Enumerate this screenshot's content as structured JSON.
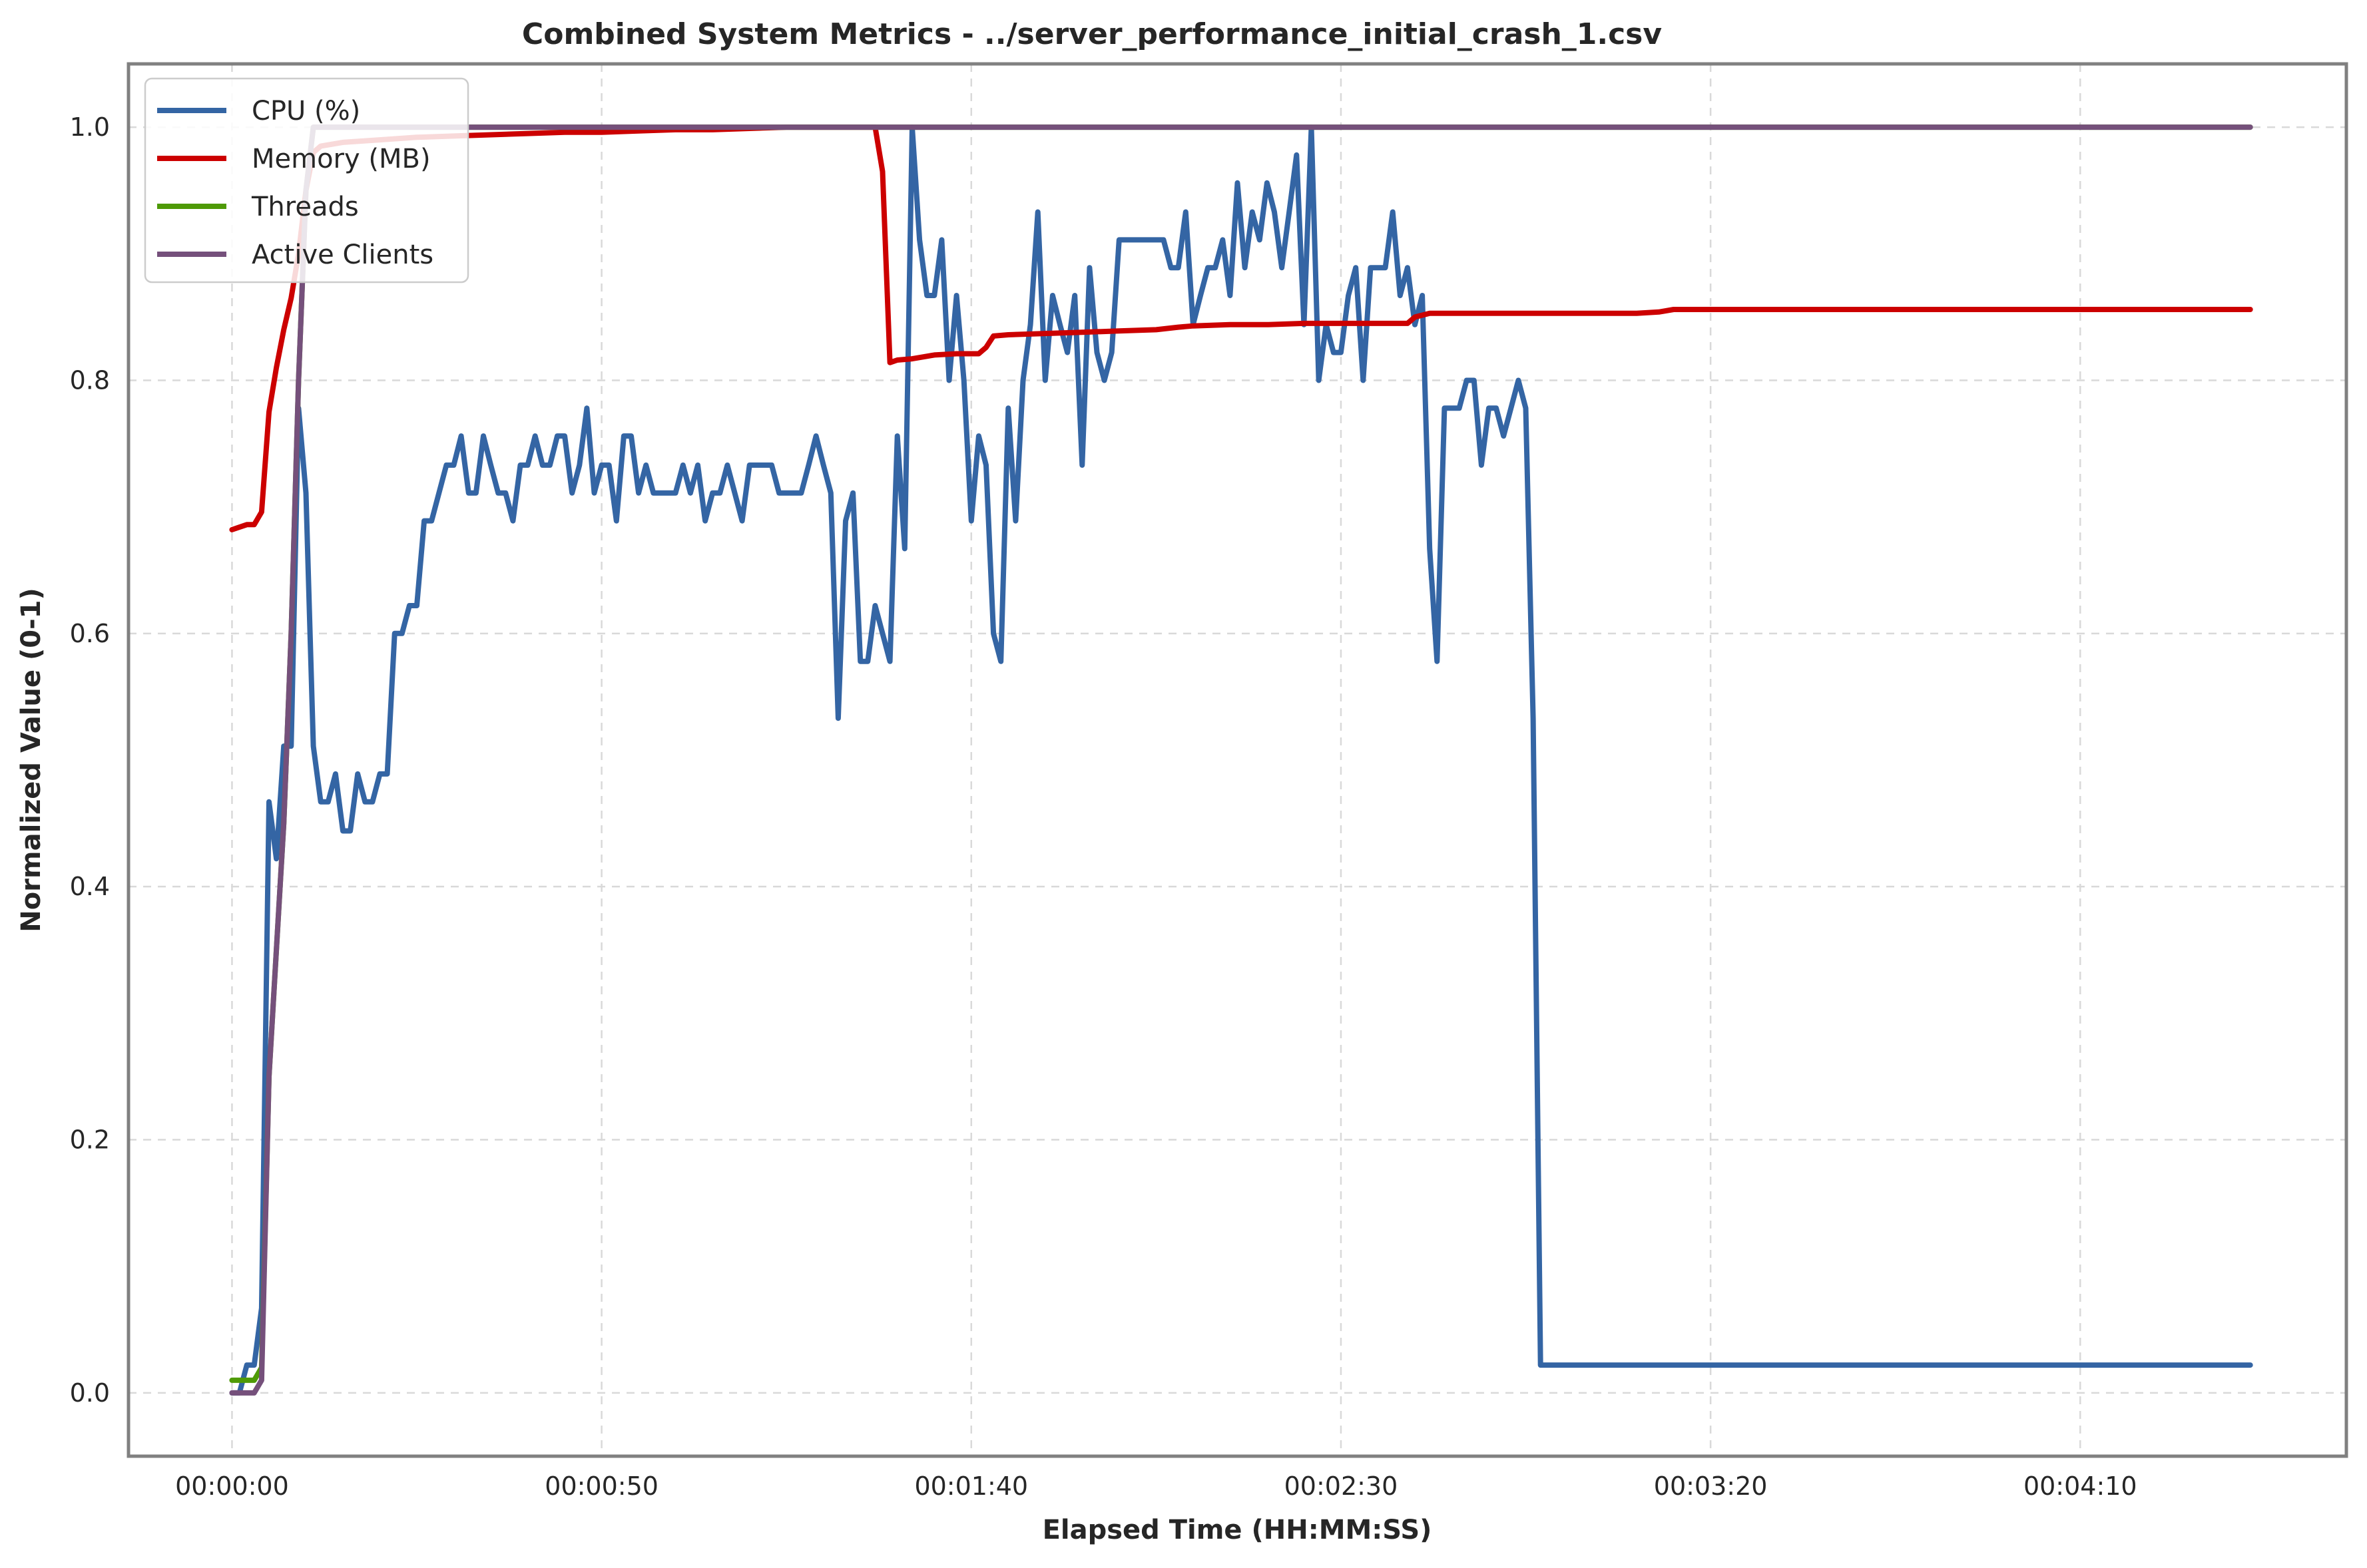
{
  "chart_data": {
    "type": "line",
    "title": "Combined System Metrics - ../server_performance_initial_crash_1.csv",
    "xlabel": "Elapsed Time (HH:MM:SS)",
    "ylabel": "Normalized Value (0-1)",
    "x_unit": "seconds",
    "xlim": [
      -14,
      286
    ],
    "ylim": [
      -0.05,
      1.05
    ],
    "x_ticks": [
      {
        "value": 0,
        "label": "00:00:00"
      },
      {
        "value": 50,
        "label": "00:00:50"
      },
      {
        "value": 100,
        "label": "00:01:40"
      },
      {
        "value": 150,
        "label": "00:02:30"
      },
      {
        "value": 200,
        "label": "00:03:20"
      },
      {
        "value": 250,
        "label": "00:04:10"
      }
    ],
    "y_ticks": [
      {
        "value": 0.0,
        "label": "0.0"
      },
      {
        "value": 0.2,
        "label": "0.2"
      },
      {
        "value": 0.4,
        "label": "0.4"
      },
      {
        "value": 0.6,
        "label": "0.6"
      },
      {
        "value": 0.8,
        "label": "0.8"
      },
      {
        "value": 1.0,
        "label": "1.0"
      }
    ],
    "grid": true,
    "legend_position": "top-left",
    "series": [
      {
        "name": "CPU (%)",
        "color": "#3465a4",
        "points": [
          [
            0,
            0
          ],
          [
            1,
            0
          ],
          [
            2,
            0.022
          ],
          [
            3,
            0.022
          ],
          [
            4,
            0.067
          ],
          [
            5,
            0.467
          ],
          [
            6,
            0.422
          ],
          [
            7,
            0.511
          ],
          [
            8,
            0.511
          ],
          [
            9,
            0.778
          ],
          [
            10,
            0.711
          ],
          [
            11,
            0.511
          ],
          [
            12,
            0.467
          ],
          [
            13,
            0.467
          ],
          [
            14,
            0.489
          ],
          [
            15,
            0.444
          ],
          [
            16,
            0.444
          ],
          [
            17,
            0.489
          ],
          [
            18,
            0.467
          ],
          [
            19,
            0.467
          ],
          [
            20,
            0.489
          ],
          [
            21,
            0.489
          ],
          [
            22,
            0.6
          ],
          [
            23,
            0.6
          ],
          [
            24,
            0.622
          ],
          [
            25,
            0.622
          ],
          [
            26,
            0.689
          ],
          [
            27,
            0.689
          ],
          [
            28,
            0.711
          ],
          [
            29,
            0.733
          ],
          [
            30,
            0.733
          ],
          [
            31,
            0.756
          ],
          [
            32,
            0.711
          ],
          [
            33,
            0.711
          ],
          [
            34,
            0.756
          ],
          [
            35,
            0.733
          ],
          [
            36,
            0.711
          ],
          [
            37,
            0.711
          ],
          [
            38,
            0.689
          ],
          [
            39,
            0.733
          ],
          [
            40,
            0.733
          ],
          [
            41,
            0.756
          ],
          [
            42,
            0.733
          ],
          [
            43,
            0.733
          ],
          [
            44,
            0.756
          ],
          [
            45,
            0.756
          ],
          [
            46,
            0.711
          ],
          [
            47,
            0.733
          ],
          [
            48,
            0.778
          ],
          [
            49,
            0.711
          ],
          [
            50,
            0.733
          ],
          [
            51,
            0.733
          ],
          [
            52,
            0.689
          ],
          [
            53,
            0.756
          ],
          [
            54,
            0.756
          ],
          [
            55,
            0.711
          ],
          [
            56,
            0.733
          ],
          [
            57,
            0.711
          ],
          [
            58,
            0.711
          ],
          [
            59,
            0.711
          ],
          [
            60,
            0.711
          ],
          [
            61,
            0.733
          ],
          [
            62,
            0.711
          ],
          [
            63,
            0.733
          ],
          [
            64,
            0.689
          ],
          [
            65,
            0.711
          ],
          [
            66,
            0.711
          ],
          [
            67,
            0.733
          ],
          [
            68,
            0.711
          ],
          [
            69,
            0.689
          ],
          [
            70,
            0.733
          ],
          [
            71,
            0.733
          ],
          [
            72,
            0.733
          ],
          [
            73,
            0.733
          ],
          [
            74,
            0.711
          ],
          [
            75,
            0.711
          ],
          [
            76,
            0.711
          ],
          [
            77,
            0.711
          ],
          [
            78,
            0.733
          ],
          [
            79,
            0.756
          ],
          [
            80,
            0.733
          ],
          [
            81,
            0.711
          ],
          [
            82,
            0.533
          ],
          [
            83,
            0.689
          ],
          [
            84,
            0.711
          ],
          [
            85,
            0.578
          ],
          [
            86,
            0.578
          ],
          [
            87,
            0.622
          ],
          [
            88,
            0.6
          ],
          [
            89,
            0.578
          ],
          [
            90,
            0.756
          ],
          [
            91,
            0.667
          ],
          [
            92,
            1.0
          ],
          [
            93,
            0.911
          ],
          [
            94,
            0.867
          ],
          [
            95,
            0.867
          ],
          [
            96,
            0.911
          ],
          [
            97,
            0.8
          ],
          [
            98,
            0.867
          ],
          [
            99,
            0.8
          ],
          [
            100,
            0.689
          ],
          [
            101,
            0.756
          ],
          [
            102,
            0.733
          ],
          [
            103,
            0.6
          ],
          [
            104,
            0.578
          ],
          [
            105,
            0.778
          ],
          [
            106,
            0.689
          ],
          [
            107,
            0.8
          ],
          [
            108,
            0.844
          ],
          [
            109,
            0.933
          ],
          [
            110,
            0.8
          ],
          [
            111,
            0.867
          ],
          [
            112,
            0.844
          ],
          [
            113,
            0.822
          ],
          [
            114,
            0.867
          ],
          [
            115,
            0.733
          ],
          [
            116,
            0.889
          ],
          [
            117,
            0.822
          ],
          [
            118,
            0.8
          ],
          [
            119,
            0.822
          ],
          [
            120,
            0.911
          ],
          [
            121,
            0.911
          ],
          [
            122,
            0.911
          ],
          [
            123,
            0.911
          ],
          [
            124,
            0.911
          ],
          [
            125,
            0.911
          ],
          [
            126,
            0.911
          ],
          [
            127,
            0.889
          ],
          [
            128,
            0.889
          ],
          [
            129,
            0.933
          ],
          [
            130,
            0.844
          ],
          [
            131,
            0.867
          ],
          [
            132,
            0.889
          ],
          [
            133,
            0.889
          ],
          [
            134,
            0.911
          ],
          [
            135,
            0.867
          ],
          [
            136,
            0.956
          ],
          [
            137,
            0.889
          ],
          [
            138,
            0.933
          ],
          [
            139,
            0.911
          ],
          [
            140,
            0.956
          ],
          [
            141,
            0.933
          ],
          [
            142,
            0.889
          ],
          [
            143,
            0.933
          ],
          [
            144,
            0.978
          ],
          [
            145,
            0.844
          ],
          [
            146,
            1.0
          ],
          [
            147,
            0.8
          ],
          [
            148,
            0.844
          ],
          [
            149,
            0.822
          ],
          [
            150,
            0.822
          ],
          [
            151,
            0.867
          ],
          [
            152,
            0.889
          ],
          [
            153,
            0.8
          ],
          [
            154,
            0.889
          ],
          [
            155,
            0.889
          ],
          [
            156,
            0.889
          ],
          [
            157,
            0.933
          ],
          [
            158,
            0.867
          ],
          [
            159,
            0.889
          ],
          [
            160,
            0.844
          ],
          [
            161,
            0.867
          ],
          [
            162,
            0.667
          ],
          [
            163,
            0.578
          ],
          [
            164,
            0.778
          ],
          [
            165,
            0.778
          ],
          [
            166,
            0.778
          ],
          [
            167,
            0.8
          ],
          [
            168,
            0.8
          ],
          [
            169,
            0.733
          ],
          [
            170,
            0.778
          ],
          [
            171,
            0.778
          ],
          [
            172,
            0.756
          ],
          [
            173,
            0.778
          ],
          [
            174,
            0.8
          ],
          [
            175,
            0.778
          ],
          [
            176,
            0.533
          ],
          [
            177,
            0.022
          ],
          [
            273,
            0.022
          ]
        ]
      },
      {
        "name": "Memory (MB)",
        "color": "#cc0000",
        "points": [
          [
            0,
            0.682
          ],
          [
            2,
            0.686
          ],
          [
            3,
            0.686
          ],
          [
            4,
            0.696
          ],
          [
            5,
            0.775
          ],
          [
            6,
            0.81
          ],
          [
            7,
            0.84
          ],
          [
            8,
            0.865
          ],
          [
            9,
            0.9
          ],
          [
            10,
            0.95
          ],
          [
            11,
            0.98
          ],
          [
            12,
            0.985
          ],
          [
            15,
            0.988
          ],
          [
            20,
            0.99
          ],
          [
            25,
            0.992
          ],
          [
            30,
            0.993
          ],
          [
            35,
            0.994
          ],
          [
            40,
            0.995
          ],
          [
            45,
            0.996
          ],
          [
            50,
            0.996
          ],
          [
            55,
            0.997
          ],
          [
            60,
            0.998
          ],
          [
            65,
            0.998
          ],
          [
            70,
            0.999
          ],
          [
            75,
            1.0
          ],
          [
            87,
            1.0
          ],
          [
            88,
            0.965
          ],
          [
            89,
            0.814
          ],
          [
            90,
            0.816
          ],
          [
            92,
            0.817
          ],
          [
            93,
            0.818
          ],
          [
            95,
            0.82
          ],
          [
            98,
            0.821
          ],
          [
            101,
            0.821
          ],
          [
            102,
            0.826
          ],
          [
            103,
            0.835
          ],
          [
            105,
            0.836
          ],
          [
            110,
            0.837
          ],
          [
            115,
            0.838
          ],
          [
            120,
            0.839
          ],
          [
            125,
            0.84
          ],
          [
            128,
            0.842
          ],
          [
            130,
            0.843
          ],
          [
            135,
            0.844
          ],
          [
            140,
            0.844
          ],
          [
            145,
            0.845
          ],
          [
            150,
            0.845
          ],
          [
            155,
            0.845
          ],
          [
            159,
            0.845
          ],
          [
            160,
            0.85
          ],
          [
            162,
            0.853
          ],
          [
            170,
            0.853
          ],
          [
            180,
            0.853
          ],
          [
            190,
            0.853
          ],
          [
            193,
            0.854
          ],
          [
            195,
            0.856
          ],
          [
            210,
            0.856
          ],
          [
            230,
            0.856
          ],
          [
            250,
            0.856
          ],
          [
            273,
            0.856
          ]
        ]
      },
      {
        "name": "Threads",
        "color": "#4e9a06",
        "points": [
          [
            0,
            0.01
          ],
          [
            3,
            0.01
          ],
          [
            4,
            0.02
          ],
          [
            5,
            0.25
          ],
          [
            6,
            0.35
          ],
          [
            7,
            0.45
          ],
          [
            8,
            0.6
          ],
          [
            9,
            0.8
          ],
          [
            10,
            0.95
          ],
          [
            11,
            1.0
          ],
          [
            273,
            1.0
          ]
        ]
      },
      {
        "name": "Active Clients",
        "color": "#75507b",
        "points": [
          [
            0,
            0.0
          ],
          [
            3,
            0.0
          ],
          [
            4,
            0.01
          ],
          [
            5,
            0.25
          ],
          [
            6,
            0.35
          ],
          [
            7,
            0.45
          ],
          [
            8,
            0.6
          ],
          [
            9,
            0.8
          ],
          [
            10,
            0.95
          ],
          [
            11,
            1.0
          ],
          [
            273,
            1.0
          ]
        ]
      }
    ]
  }
}
